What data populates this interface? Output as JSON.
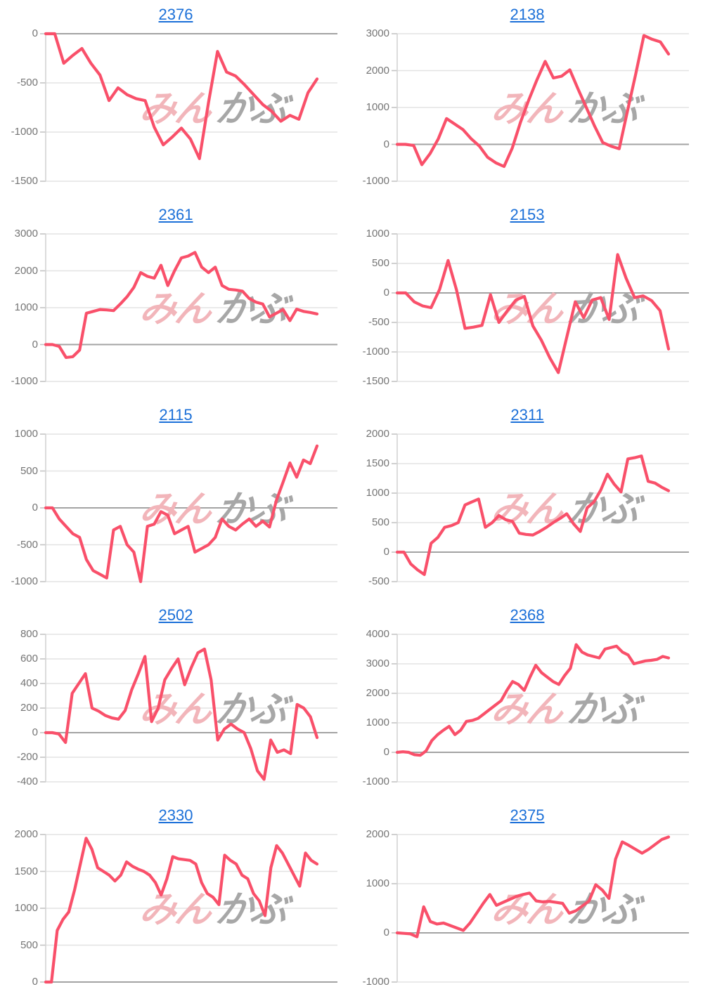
{
  "page": {
    "background": "#ffffff"
  },
  "watermark": {
    "pink_text": "みん",
    "gray_text": "かぶ",
    "pink_color": "#f2b5ba",
    "gray_color": "#a7a7a7"
  },
  "style": {
    "line_color": "#f9506a",
    "grid_color": "#e3e3e3",
    "zero_line_color": "#a3a3a3",
    "axis_color": "#d4d4d4",
    "tick_color": "#c4c4c4",
    "tick_label_color": "#757575",
    "title_color": "#1a6fd8"
  },
  "chart_data": [
    {
      "type": "line",
      "title": "2376",
      "legend": "none",
      "grid": true,
      "y_ticks": [
        0,
        -500,
        -1000,
        -1500
      ],
      "ylim": [
        -1500,
        0
      ],
      "values": [
        0,
        0,
        -300,
        -220,
        -150,
        -300,
        -420,
        -680,
        -550,
        -620,
        -660,
        -680,
        -950,
        -1130,
        -1050,
        -960,
        -1070,
        -1270,
        -700,
        -180,
        -390,
        -430,
        -520,
        -620,
        -720,
        -790,
        -890,
        -830,
        -870,
        -600,
        -460
      ]
    },
    {
      "type": "line",
      "title": "2138",
      "legend": "none",
      "grid": true,
      "y_ticks": [
        3000,
        2000,
        1000,
        0,
        -1000
      ],
      "ylim": [
        -1000,
        3000
      ],
      "values": [
        0,
        0,
        -30,
        -550,
        -250,
        150,
        700,
        550,
        400,
        150,
        -50,
        -350,
        -500,
        -600,
        -100,
        600,
        1200,
        1750,
        2250,
        1800,
        1850,
        2020,
        1500,
        1000,
        500,
        50,
        -50,
        -120,
        900,
        1900,
        2950,
        2850,
        2780,
        2450
      ]
    },
    {
      "type": "line",
      "title": "2361",
      "legend": "none",
      "grid": true,
      "y_ticks": [
        3000,
        2000,
        1000,
        0,
        -1000
      ],
      "ylim": [
        -1000,
        3000
      ],
      "values": [
        0,
        0,
        -50,
        -350,
        -330,
        -150,
        850,
        900,
        950,
        940,
        920,
        1100,
        1300,
        1550,
        1950,
        1850,
        1800,
        2150,
        1600,
        2000,
        2350,
        2400,
        2500,
        2100,
        1950,
        2100,
        1600,
        1500,
        1480,
        1450,
        1250,
        1150,
        1100,
        750,
        850,
        950,
        650,
        960,
        900,
        870,
        830
      ]
    },
    {
      "type": "line",
      "title": "2153",
      "legend": "none",
      "grid": true,
      "y_ticks": [
        1000,
        500,
        0,
        -500,
        -1000,
        -1500
      ],
      "ylim": [
        -1500,
        1000
      ],
      "values": [
        0,
        0,
        -150,
        -220,
        -250,
        60,
        550,
        50,
        -600,
        -580,
        -550,
        -30,
        -500,
        -300,
        -120,
        -60,
        -560,
        -800,
        -1100,
        -1350,
        -750,
        -150,
        -420,
        -120,
        -80,
        -450,
        650,
        250,
        -80,
        -50,
        -130,
        -300,
        -950
      ]
    },
    {
      "type": "line",
      "title": "2115",
      "legend": "none",
      "grid": true,
      "y_ticks": [
        1000,
        500,
        0,
        -500,
        -1000
      ],
      "ylim": [
        -1000,
        1000
      ],
      "values": [
        0,
        0,
        -150,
        -250,
        -350,
        -400,
        -700,
        -850,
        -900,
        -950,
        -300,
        -250,
        -500,
        -600,
        -1000,
        -250,
        -220,
        -50,
        -100,
        -350,
        -300,
        -250,
        -600,
        -550,
        -500,
        -400,
        -150,
        -250,
        -300,
        -220,
        -150,
        -250,
        -180,
        -260,
        100,
        350,
        610,
        415,
        650,
        600,
        840
      ]
    },
    {
      "type": "line",
      "title": "2311",
      "legend": "none",
      "grid": true,
      "y_ticks": [
        2000,
        1500,
        1000,
        500,
        0,
        -500
      ],
      "ylim": [
        -500,
        2000
      ],
      "values": [
        0,
        0,
        -200,
        -300,
        -380,
        150,
        250,
        420,
        450,
        500,
        800,
        850,
        900,
        420,
        500,
        620,
        550,
        520,
        320,
        300,
        290,
        350,
        420,
        500,
        570,
        650,
        480,
        350,
        750,
        850,
        1050,
        1320,
        1150,
        1020,
        1580,
        1600,
        1630,
        1200,
        1170,
        1100,
        1040
      ]
    },
    {
      "type": "line",
      "title": "2502",
      "legend": "none",
      "grid": true,
      "y_ticks": [
        800,
        600,
        400,
        200,
        0,
        -200,
        -400
      ],
      "ylim": [
        -400,
        800
      ],
      "values": [
        0,
        0,
        -10,
        -80,
        320,
        400,
        480,
        200,
        175,
        140,
        120,
        110,
        180,
        350,
        480,
        620,
        90,
        200,
        430,
        520,
        600,
        390,
        530,
        650,
        680,
        430,
        -60,
        30,
        70,
        30,
        0,
        -130,
        -310,
        -380,
        -60,
        -160,
        -140,
        -170,
        230,
        200,
        130,
        -40
      ]
    },
    {
      "type": "line",
      "title": "2368",
      "legend": "none",
      "grid": true,
      "y_ticks": [
        4000,
        3000,
        2000,
        1000,
        0,
        -1000
      ],
      "ylim": [
        -1000,
        4000
      ],
      "values": [
        0,
        20,
        0,
        -80,
        -100,
        50,
        400,
        600,
        750,
        880,
        600,
        750,
        1050,
        1080,
        1150,
        1300,
        1450,
        1600,
        1750,
        2100,
        2400,
        2300,
        2100,
        2550,
        2950,
        2700,
        2550,
        2400,
        2300,
        2600,
        2850,
        3650,
        3400,
        3300,
        3250,
        3200,
        3500,
        3550,
        3600,
        3400,
        3300,
        3000,
        3050,
        3100,
        3120,
        3150,
        3250,
        3200
      ]
    },
    {
      "type": "line",
      "title": "2330",
      "legend": "none",
      "grid": true,
      "y_ticks": [
        2000,
        1500,
        1000,
        500,
        0
      ],
      "ylim": [
        0,
        2000
      ],
      "values": [
        0,
        0,
        700,
        850,
        950,
        1250,
        1600,
        1950,
        1800,
        1550,
        1500,
        1450,
        1370,
        1450,
        1630,
        1570,
        1530,
        1500,
        1450,
        1350,
        1180,
        1400,
        1700,
        1670,
        1660,
        1650,
        1600,
        1350,
        1200,
        1150,
        1050,
        1720,
        1650,
        1600,
        1450,
        1400,
        1200,
        1100,
        900,
        1550,
        1850,
        1750,
        1600,
        1450,
        1300,
        1750,
        1650,
        1600
      ]
    },
    {
      "type": "line",
      "title": "2375",
      "legend": "none",
      "grid": true,
      "y_ticks": [
        2000,
        1000,
        0,
        -1000
      ],
      "ylim": [
        -1000,
        2000
      ],
      "values": [
        0,
        -10,
        -20,
        -80,
        530,
        230,
        180,
        200,
        150,
        100,
        50,
        200,
        400,
        600,
        780,
        560,
        620,
        680,
        740,
        780,
        810,
        650,
        630,
        640,
        620,
        600,
        400,
        450,
        550,
        650,
        980,
        870,
        700,
        1500,
        1850,
        1780,
        1700,
        1620,
        1700,
        1800,
        1900,
        1950
      ]
    }
  ]
}
